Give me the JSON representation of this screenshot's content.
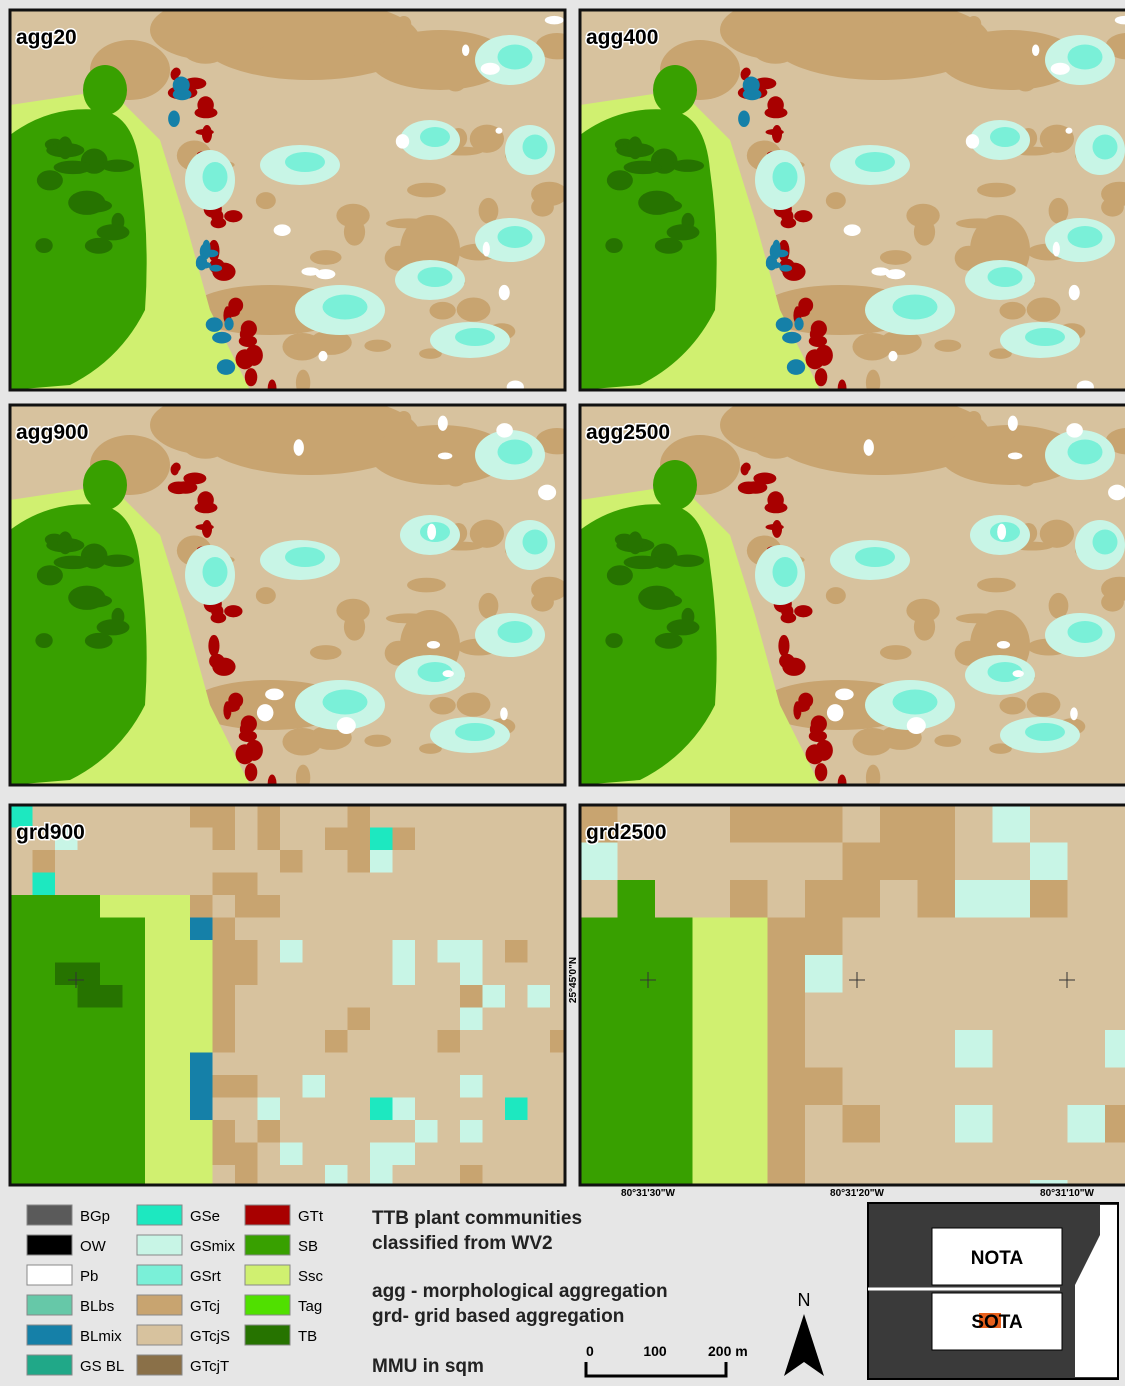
{
  "panels": [
    {
      "label": "agg20"
    },
    {
      "label": "agg400"
    },
    {
      "label": "agg900"
    },
    {
      "label": "agg2500"
    },
    {
      "label": "grd900"
    },
    {
      "label": "grd2500"
    }
  ],
  "coordinates": {
    "latitude": "25°45'0\"N",
    "longitudes": [
      "80°31'30\"W",
      "80°31'20\"W",
      "80°31'10\"W"
    ]
  },
  "legend": {
    "items": [
      {
        "name": "BGp",
        "color": "#5a5a5a"
      },
      {
        "name": "OW",
        "color": "#000000"
      },
      {
        "name": "Pb",
        "color": "#ffffff"
      },
      {
        "name": "BLbs",
        "color": "#66c8a8"
      },
      {
        "name": "BLmix",
        "color": "#1580a8"
      },
      {
        "name": "GS BL",
        "color": "#20a888"
      },
      {
        "name": "GSe",
        "color": "#1de8c0"
      },
      {
        "name": "GSmix",
        "color": "#c8f5e6"
      },
      {
        "name": "GSrt",
        "color": "#7af0d8"
      },
      {
        "name": "GTcj",
        "color": "#c8a470"
      },
      {
        "name": "GTcjS",
        "color": "#d7c29e"
      },
      {
        "name": "GTcjT",
        "color": "#8a7048"
      },
      {
        "name": "GTt",
        "color": "#a80000"
      },
      {
        "name": "SB",
        "color": "#38a000"
      },
      {
        "name": "Ssc",
        "color": "#d0f070"
      },
      {
        "name": "Tag",
        "color": "#50e000"
      },
      {
        "name": "TB",
        "color": "#267300"
      }
    ]
  },
  "description": {
    "title": [
      "TTB plant communities",
      "classified from WV2"
    ],
    "notes": [
      "agg - morphological aggregation",
      "grd- grid based aggregation"
    ],
    "mmu": "MMU in sqm"
  },
  "scale_bar": {
    "labels": [
      "0",
      "100",
      "200 m"
    ]
  },
  "north_arrow": "N",
  "inset": {
    "labels": [
      "NOTA",
      "SOTA"
    ]
  }
}
